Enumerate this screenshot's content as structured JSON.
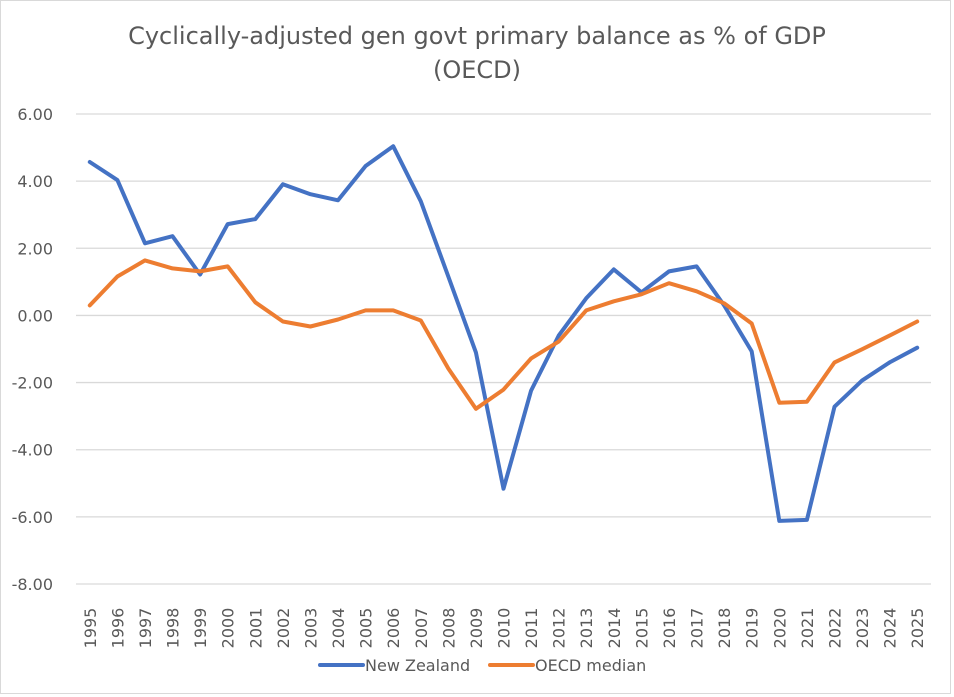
{
  "chart_data": {
    "type": "line",
    "title": "Cyclically-adjusted gen govt primary balance as % of GDP",
    "subtitle": "(OECD)",
    "xlabel": "",
    "ylabel": "",
    "ylim": [
      -8,
      6
    ],
    "yticks": [
      6,
      4,
      2,
      0,
      -2,
      -4,
      -6,
      -8
    ],
    "ytick_labels": [
      "6.00",
      "4.00",
      "2.00",
      "0.00",
      "-2.00",
      "-4.00",
      "-6.00",
      "-8.00"
    ],
    "grid": true,
    "legend_position": "bottom",
    "x": [
      "1995",
      "1996",
      "1997",
      "1998",
      "1999",
      "2000",
      "2001",
      "2002",
      "2003",
      "2004",
      "2005",
      "2006",
      "2007",
      "2008",
      "2009",
      "2010",
      "2011",
      "2012",
      "2013",
      "2014",
      "2015",
      "2016",
      "2017",
      "2018",
      "2019",
      "2020",
      "2021",
      "2022",
      "2023",
      "2024",
      "2025"
    ],
    "series": [
      {
        "name": "New Zealand",
        "color": "#4472c4",
        "values": [
          4.57,
          4.03,
          2.15,
          2.36,
          1.22,
          2.72,
          2.87,
          3.91,
          3.61,
          3.43,
          4.45,
          5.04,
          3.4,
          1.16,
          -1.1,
          -5.16,
          -2.24,
          -0.6,
          0.51,
          1.37,
          0.69,
          1.31,
          1.46,
          0.3,
          -1.07,
          -6.12,
          -6.09,
          -2.72,
          -1.94,
          -1.4,
          -0.96
        ]
      },
      {
        "name": "OECD median",
        "color": "#ed7d31",
        "values": [
          0.3,
          1.16,
          1.64,
          1.4,
          1.31,
          1.46,
          0.39,
          -0.18,
          -0.33,
          -0.12,
          0.15,
          0.15,
          -0.15,
          -1.58,
          -2.78,
          -2.21,
          -1.28,
          -0.78,
          0.15,
          0.42,
          0.63,
          0.96,
          0.72,
          0.36,
          -0.24,
          -2.6,
          -2.57,
          -1.4,
          -1.01,
          -0.6,
          -0.18
        ]
      }
    ]
  }
}
